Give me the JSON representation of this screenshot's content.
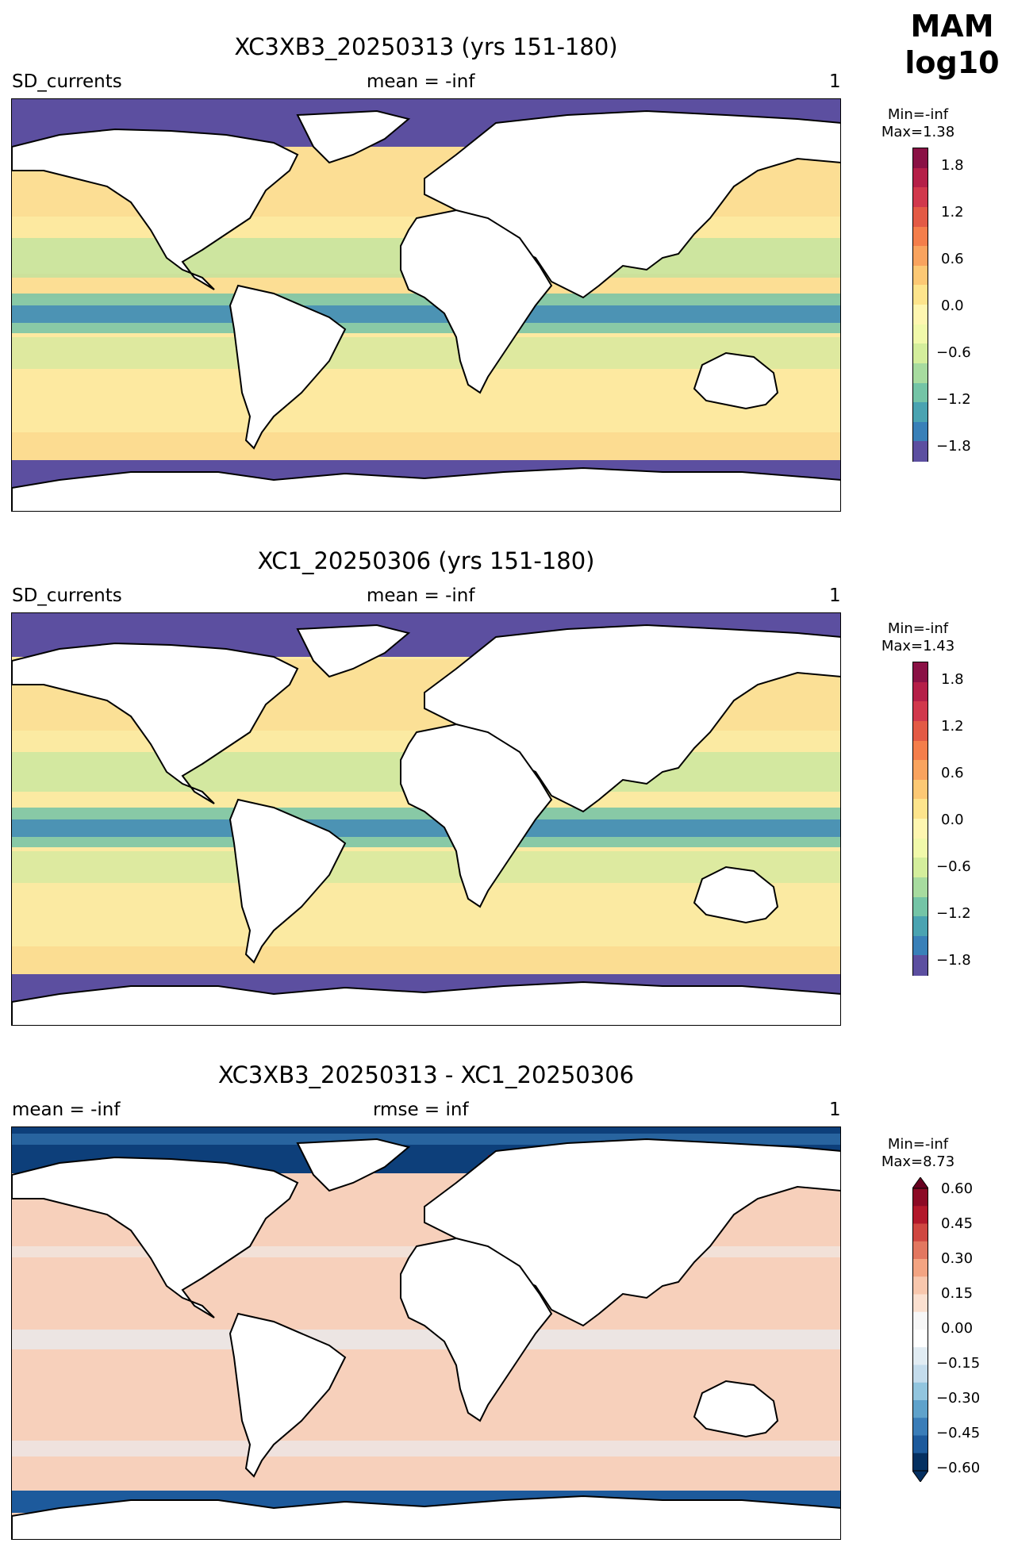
{
  "header": {
    "season": "MAM",
    "scale": "log10"
  },
  "panels": [
    {
      "title": "XC3XB3_20250313 (yrs 151-180)",
      "left_label": "SD_currents",
      "center_label": "mean = -inf",
      "right_label": "1",
      "colorbar": {
        "min_label": "Min=-inf",
        "max_label": "Max=1.38",
        "ticks": [
          "1.8",
          "1.2",
          "0.6",
          "0.0",
          "−0.6",
          "−1.2",
          "−1.8"
        ],
        "cmap": "Spectral_r",
        "colors": [
          "#8a1145",
          "#b51f48",
          "#d1384c",
          "#e35a45",
          "#f47e4b",
          "#f9a35e",
          "#fcc874",
          "#fde48c",
          "#fef6b0",
          "#f1f9aa",
          "#d4ee9c",
          "#a7db9f",
          "#74c4a6",
          "#4aa3b1",
          "#3980b8",
          "#5c4fa0"
        ]
      }
    },
    {
      "title": "XC1_20250306 (yrs 151-180)",
      "left_label": "SD_currents",
      "center_label": "mean = -inf",
      "right_label": "1",
      "colorbar": {
        "min_label": "Min=-inf",
        "max_label": "Max=1.43",
        "ticks": [
          "1.8",
          "1.2",
          "0.6",
          "0.0",
          "−0.6",
          "−1.2",
          "−1.8"
        ],
        "cmap": "Spectral_r",
        "colors": [
          "#8a1145",
          "#b51f48",
          "#d1384c",
          "#e35a45",
          "#f47e4b",
          "#f9a35e",
          "#fcc874",
          "#fde48c",
          "#fef6b0",
          "#f1f9aa",
          "#d4ee9c",
          "#a7db9f",
          "#74c4a6",
          "#4aa3b1",
          "#3980b8",
          "#5c4fa0"
        ]
      }
    },
    {
      "title": "XC3XB3_20250313 - XC1_20250306",
      "left_label": "mean = -inf",
      "center_label": "rmse = inf",
      "right_label": "1",
      "colorbar": {
        "min_label": "Min=-inf",
        "max_label": "Max=8.73",
        "ticks": [
          "0.60",
          "0.45",
          "0.30",
          "0.15",
          "0.00",
          "−0.15",
          "−0.30",
          "−0.45",
          "−0.60"
        ],
        "cmap": "RdBu_r",
        "colors": [
          "#8c0a25",
          "#b2182b",
          "#cf4741",
          "#e27760",
          "#f3a482",
          "#f8c7ad",
          "#fbe0d0",
          "#f7f7f7",
          "#ffffff",
          "#e1ecf3",
          "#c4dcec",
          "#92c5de",
          "#5fa2cb",
          "#3a7db8",
          "#1d5a9c",
          "#053061"
        ]
      }
    }
  ]
}
